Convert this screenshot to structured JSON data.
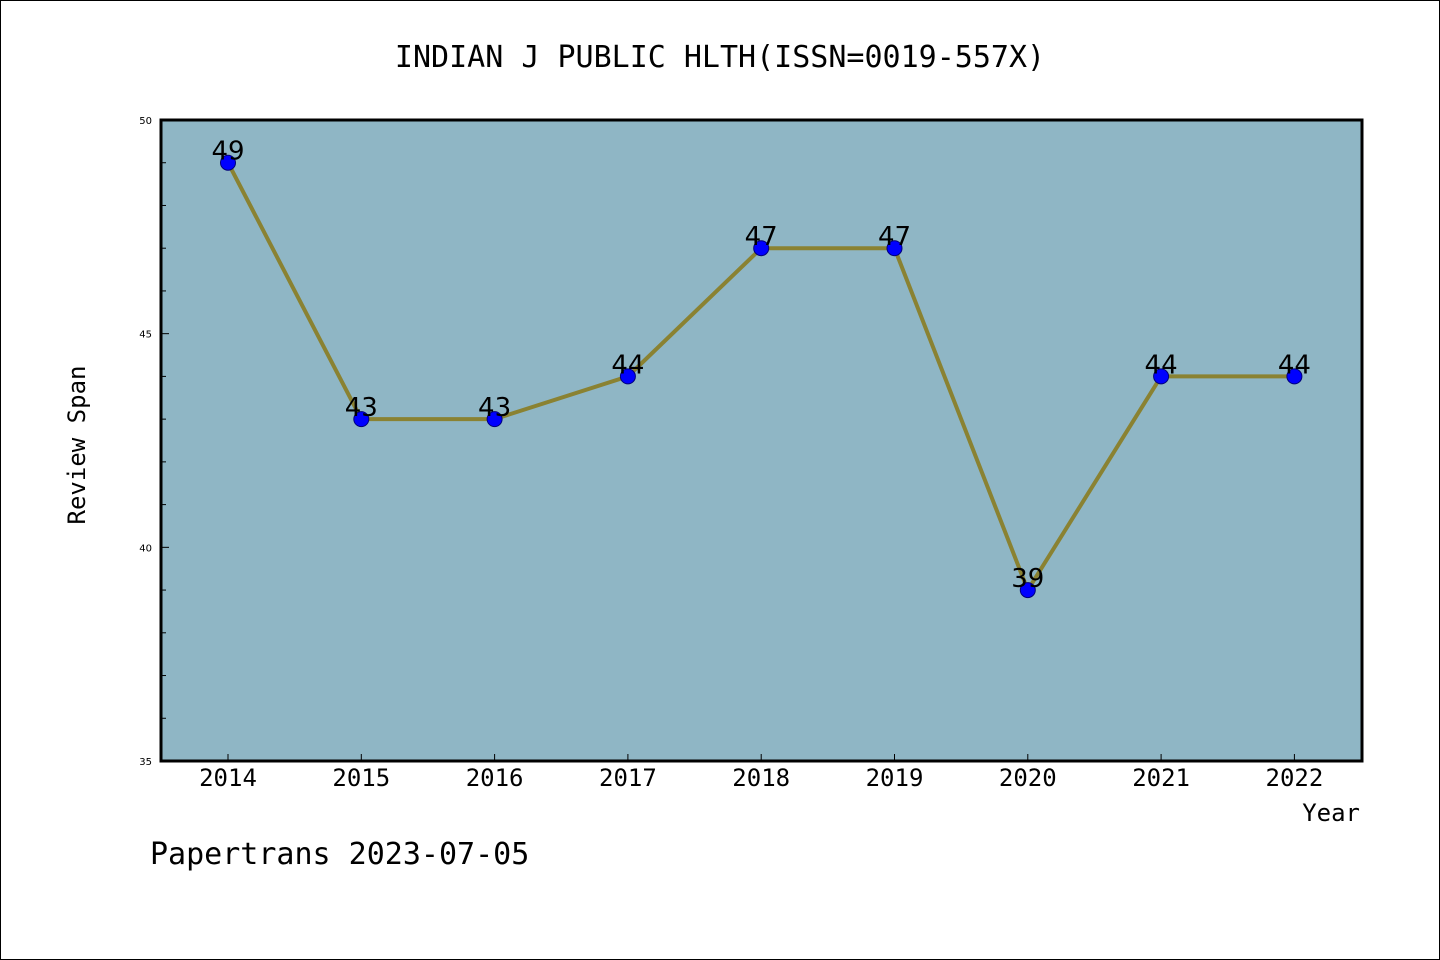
{
  "chart_data": {
    "type": "line",
    "title": "INDIAN J PUBLIC HLTH(ISSN=0019-557X)",
    "xlabel": "Year",
    "ylabel": "Review Span",
    "categories": [
      "2014",
      "2015",
      "2016",
      "2017",
      "2018",
      "2019",
      "2020",
      "2021",
      "2022"
    ],
    "series": [
      {
        "values": [
          49,
          43,
          43,
          44,
          47,
          47,
          39,
          44,
          44
        ]
      }
    ],
    "data_labels": [
      "49",
      "43",
      "43",
      "44",
      "47",
      "47",
      "39",
      "44",
      "44"
    ],
    "ylim": [
      35,
      50
    ],
    "yticks": [
      "35",
      "40",
      "45",
      "50"
    ],
    "grid": false,
    "legend": "none",
    "colors": {
      "plot_background": "#8fb6c5",
      "line": "#8a8232",
      "marker": "#0000ff",
      "marker_edge": "#00007a"
    }
  },
  "footer": "Papertrans 2023-07-05"
}
